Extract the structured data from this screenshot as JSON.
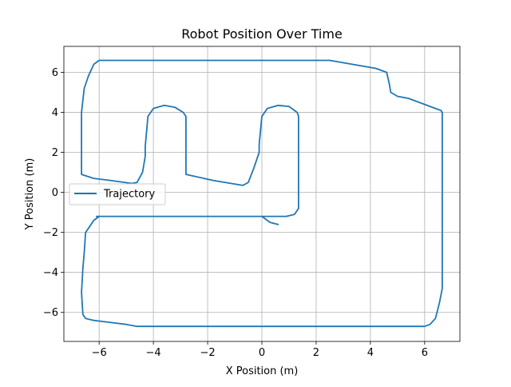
{
  "chart_data": {
    "type": "line",
    "title": "Robot Position Over Time",
    "xlabel": "X Position (m)",
    "ylabel": "Y Position (m)",
    "xlim": [
      -7.3,
      7.3
    ],
    "ylim": [
      -7.45,
      7.3
    ],
    "xticks": [
      -6,
      -4,
      -2,
      0,
      2,
      4,
      6
    ],
    "yticks": [
      -6,
      -4,
      -2,
      0,
      2,
      4,
      6
    ],
    "xtick_labels": [
      "−6",
      "−4",
      "−2",
      "0",
      "2",
      "4",
      "6"
    ],
    "ytick_labels": [
      "−6",
      "−4",
      "−2",
      "0",
      "2",
      "4",
      "6"
    ],
    "grid": true,
    "legend_position": "center-left",
    "series": [
      {
        "name": "Trajectory",
        "color": "#1f77b4",
        "x": [
          0.6,
          0.3,
          0.0,
          -1.0,
          -3.0,
          -5.0,
          -6.0,
          -6.2,
          -6.5,
          -6.55,
          -6.6,
          -6.65,
          -6.6,
          -6.5,
          -6.2,
          -5.0,
          -4.6,
          -3.0,
          1.0,
          4.0,
          6.0,
          6.2,
          6.4,
          6.55,
          6.65,
          6.65,
          6.65,
          6.6,
          6.2,
          5.4,
          5.0,
          4.75,
          4.7,
          4.6,
          4.2,
          2.5,
          0.0,
          -3.0,
          -6.0,
          -6.2,
          -6.4,
          -6.55,
          -6.6,
          -6.65,
          -6.65,
          -6.2,
          -5.6,
          -4.8,
          -4.6,
          -4.4,
          -4.3,
          -4.3,
          -4.2,
          -4.0,
          -3.6,
          -3.2,
          -2.9,
          -2.8,
          -2.8,
          -2.8,
          -1.8,
          -0.7,
          -0.5,
          -0.3,
          -0.1,
          -0.1,
          0.0,
          0.2,
          0.6,
          1.0,
          1.3,
          1.35,
          1.35,
          1.35,
          1.2,
          0.9,
          0.0,
          -2.0,
          -4.0,
          -6.1
        ],
        "y": [
          -1.6,
          -1.5,
          -1.2,
          -1.2,
          -1.2,
          -1.2,
          -1.2,
          -1.4,
          -2.0,
          -3.0,
          -3.8,
          -5.0,
          -6.1,
          -6.3,
          -6.4,
          -6.6,
          -6.7,
          -6.7,
          -6.7,
          -6.7,
          -6.7,
          -6.6,
          -6.3,
          -5.5,
          -4.8,
          -2.0,
          4.0,
          4.1,
          4.3,
          4.7,
          4.8,
          5.0,
          5.4,
          6.0,
          6.2,
          6.6,
          6.6,
          6.6,
          6.6,
          6.4,
          5.8,
          5.2,
          4.6,
          4.0,
          0.9,
          0.7,
          0.6,
          0.45,
          0.5,
          1.0,
          1.8,
          2.3,
          3.8,
          4.2,
          4.35,
          4.25,
          4.0,
          3.8,
          2.0,
          0.9,
          0.6,
          0.35,
          0.5,
          1.2,
          2.0,
          2.4,
          3.8,
          4.2,
          4.35,
          4.3,
          4.0,
          3.8,
          1.0,
          -0.8,
          -1.1,
          -1.2,
          -1.2,
          -1.2,
          -1.2,
          -1.2
        ]
      }
    ]
  }
}
